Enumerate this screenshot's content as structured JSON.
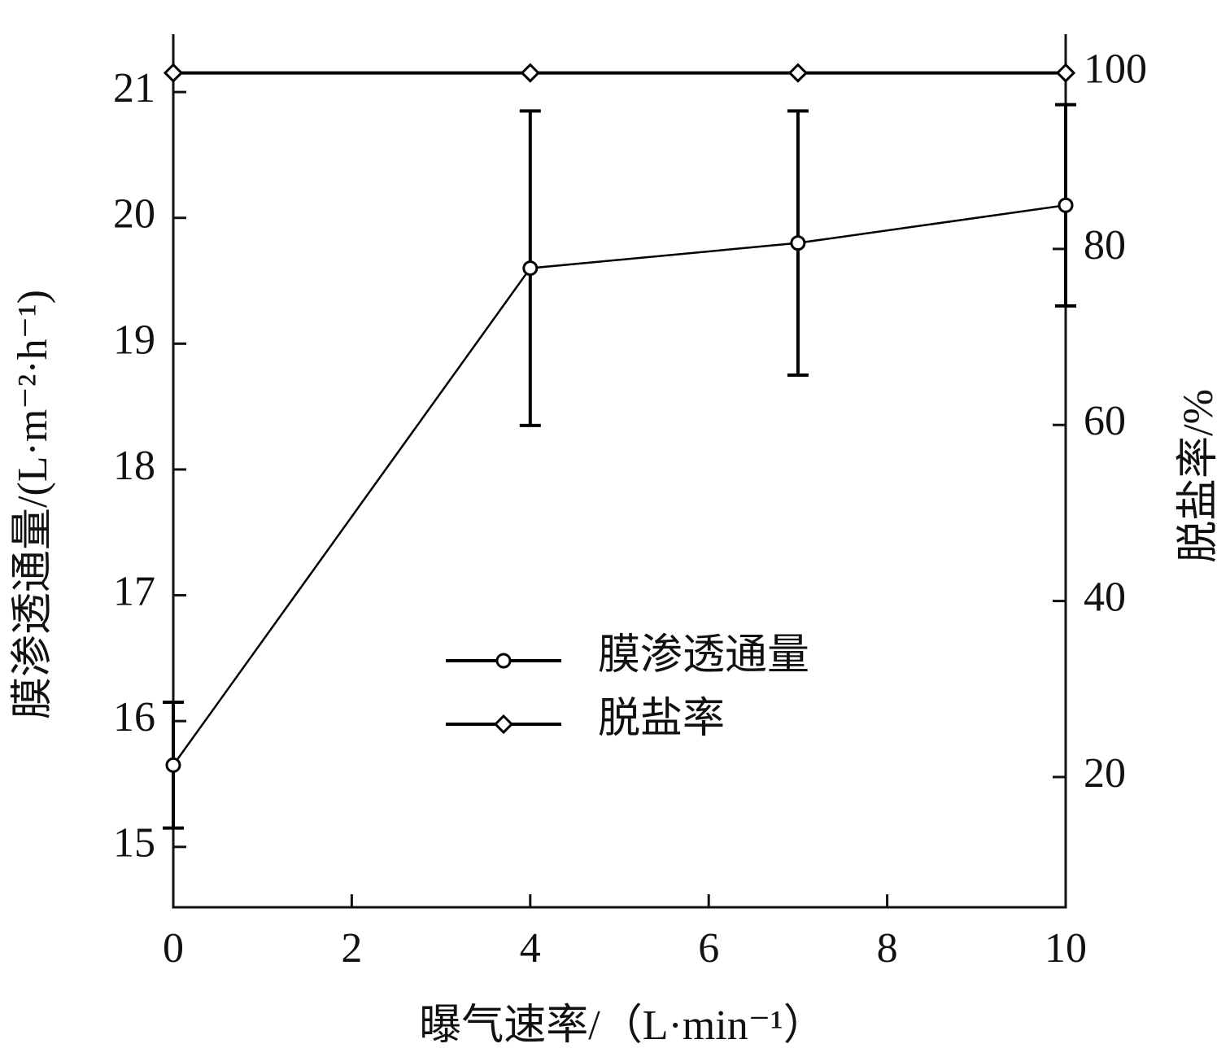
{
  "chart_data": {
    "type": "line",
    "xlabel": "曝气速率/（L·min⁻¹）",
    "ylabel": "膜渗透通量/(L·m⁻²·h⁻¹)",
    "y2label": "脱盐率/%",
    "x": [
      0,
      4,
      7,
      10
    ],
    "series": [
      {
        "name": "膜渗透通量",
        "color": "#000000",
        "marker": "circle",
        "values": [
          15.65,
          19.6,
          19.8,
          20.1
        ],
        "errors": [
          0.5,
          1.25,
          1.05,
          0.8
        ]
      },
      {
        "name": "脱盐率",
        "color": "#000000",
        "marker": "diamond",
        "axis": "y2",
        "values": [
          100,
          100,
          100,
          100
        ]
      }
    ],
    "xlim": [
      0,
      10
    ],
    "xticks": [
      0,
      2,
      4,
      6,
      8,
      10
    ],
    "ylim": [
      14.52,
      21.46
    ],
    "yticks": [
      15,
      16,
      17,
      18,
      19,
      20,
      21
    ],
    "y2lim": [
      5.2,
      104.4
    ],
    "y2ticks": [
      20,
      40,
      60,
      80,
      100
    ],
    "grid": false,
    "legend": "center"
  }
}
